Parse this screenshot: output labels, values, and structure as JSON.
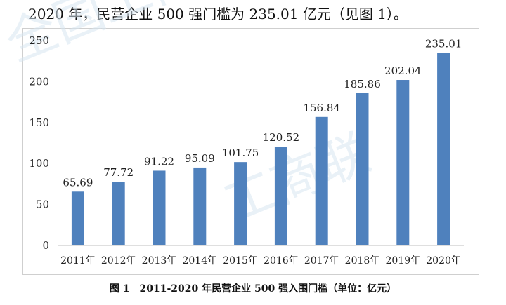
{
  "intro_text": "2020 年，民营企业 500 强门槛为 235.01 亿元（见图 1）。",
  "watermark": [
    "全国工商联",
    "工商联"
  ],
  "caption": "图 1　2011-2020 年民营企业 500 强入围门槛（单位：亿元）",
  "colors": {
    "bar": "#4f81bd",
    "axis": "#bfbfbf",
    "text": "#222222"
  },
  "chart_data": {
    "type": "bar",
    "categories": [
      "2011年",
      "2012年",
      "2013年",
      "2014年",
      "2015年",
      "2016年",
      "2017年",
      "2018年",
      "2019年",
      "2020年"
    ],
    "values": [
      65.69,
      77.72,
      91.22,
      95.09,
      101.75,
      120.52,
      156.84,
      185.86,
      202.04,
      235.01
    ],
    "value_labels": [
      "65.69",
      "77.72",
      "91.22",
      "95.09",
      "101.75",
      "120.52",
      "156.84",
      "185.86",
      "202.04",
      "235.01"
    ],
    "y_ticks": [
      "0",
      "50",
      "100",
      "150",
      "200",
      "250"
    ],
    "ylim": [
      0,
      250
    ],
    "grid": false,
    "legend": "none",
    "title": "",
    "xlabel": "",
    "ylabel": ""
  }
}
